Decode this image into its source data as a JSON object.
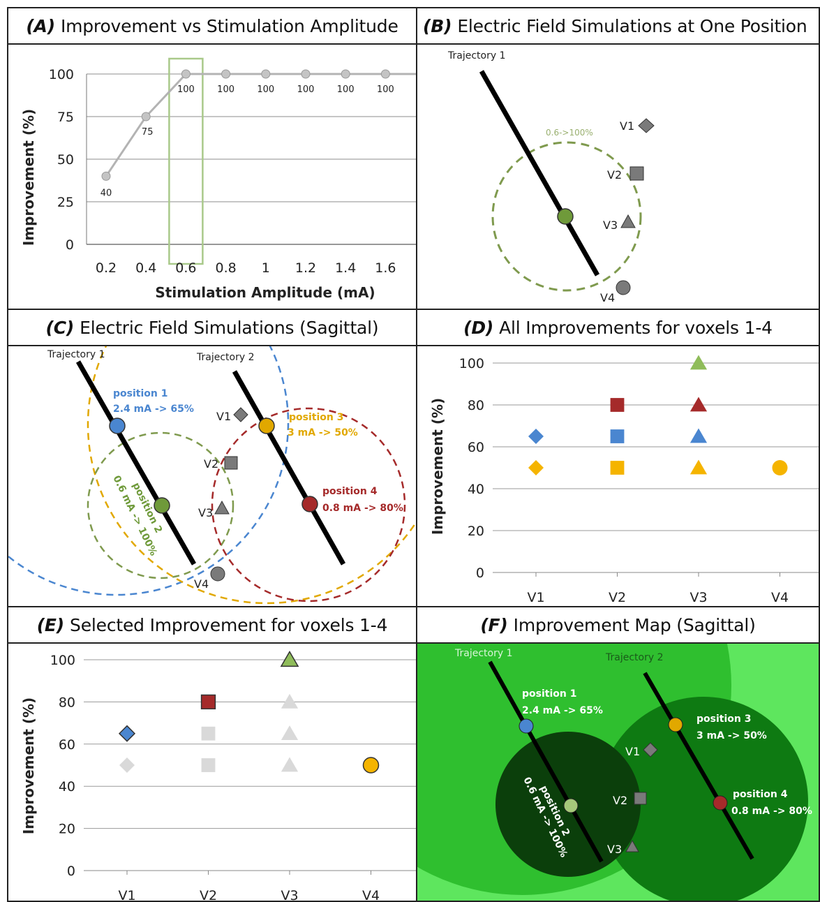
{
  "panels": {
    "a": {
      "tag": "(A)",
      "title": "Improvement vs Stimulation Amplitude"
    },
    "b": {
      "tag": "(B)",
      "title": "Electric Field Simulations at One Position"
    },
    "c": {
      "tag": "(C)",
      "title": "Electric Field Simulations (Sagittal)"
    },
    "d": {
      "tag": "(D)",
      "title": "All Improvements for voxels 1-4"
    },
    "e": {
      "tag": "(E)",
      "title": "Selected Improvement for voxels 1-4"
    },
    "f": {
      "tag": "(F)",
      "title": "Improvement Map (Sagittal)"
    }
  },
  "diagrams": {
    "b": {
      "trajectory": "Trajectory 1",
      "field_label": "0.6->100%",
      "voxels": [
        "V1",
        "V2",
        "V3",
        "V4"
      ]
    },
    "c": {
      "trajectories": [
        "Trajectory 1",
        "Trajectory 2"
      ],
      "positions": [
        {
          "name": "position 1",
          "detail": "2.4 mA -> 65%",
          "color": "#4a86d0"
        },
        {
          "name": "position 2",
          "detail": "0.6 mA -> 100%",
          "color": "#6f9a3a"
        },
        {
          "name": "position 3",
          "detail": "3 mA -> 50%",
          "color": "#e1a800"
        },
        {
          "name": "position 4",
          "detail": "0.8 mA -> 80%",
          "color": "#a52a2a"
        }
      ],
      "voxels": [
        "V1",
        "V2",
        "V3",
        "V4"
      ]
    },
    "f": {
      "trajectories": [
        "Trajectory 1",
        "Trajectory 2"
      ],
      "positions": [
        {
          "name": "position 1",
          "detail": "2.4 mA -> 65%"
        },
        {
          "name": "position 2",
          "detail": "0.6 mA -> 100%"
        },
        {
          "name": "position 3",
          "detail": "3 mA -> 50%"
        },
        {
          "name": "position 4",
          "detail": "0.8 mA -> 80%"
        }
      ],
      "voxels": [
        "V1",
        "V2",
        "V3",
        "V4"
      ],
      "colors": {
        "bright": "#5ee65e",
        "mid": "#2fbf2f",
        "dark": "#0e7a12",
        "darkest": "#0b3f0b"
      }
    }
  },
  "chart_data": [
    {
      "id": "A",
      "type": "line",
      "xlabel": "Stimulation Amplitude (mA)",
      "ylabel": "Improvement (%)",
      "categories": [
        "0.2",
        "0.4",
        "0.6",
        "0.8",
        "1",
        "1.2",
        "1.4",
        "1.6"
      ],
      "values": [
        40,
        75,
        100,
        100,
        100,
        100,
        100,
        100
      ],
      "data_labels": [
        "40",
        "75",
        "100",
        "100",
        "100",
        "100",
        "100",
        "100"
      ],
      "yticks": [
        "0",
        "25",
        "50",
        "75",
        "100"
      ],
      "ylim": [
        0,
        100
      ],
      "highlight_category": "0.6",
      "grid": true,
      "colors": {
        "line": "#b3b3b3",
        "highlight": "#a9c98a"
      }
    },
    {
      "id": "D",
      "type": "scatter",
      "ylabel": "Improvement (%)",
      "categories": [
        "V1",
        "V2",
        "V3",
        "V4"
      ],
      "yticks": [
        "0",
        "20",
        "40",
        "60",
        "80",
        "100"
      ],
      "ylim": [
        0,
        100
      ],
      "grid": true,
      "points": [
        {
          "x": "V1",
          "y": 65,
          "marker": "diamond",
          "color": "#4a86d0"
        },
        {
          "x": "V1",
          "y": 50,
          "marker": "diamond",
          "color": "#f5b400"
        },
        {
          "x": "V2",
          "y": 80,
          "marker": "square",
          "color": "#a52a2a"
        },
        {
          "x": "V2",
          "y": 65,
          "marker": "square",
          "color": "#4a86d0"
        },
        {
          "x": "V2",
          "y": 50,
          "marker": "square",
          "color": "#f5b400"
        },
        {
          "x": "V3",
          "y": 100,
          "marker": "triangle",
          "color": "#8fbc5a"
        },
        {
          "x": "V3",
          "y": 80,
          "marker": "triangle",
          "color": "#a52a2a"
        },
        {
          "x": "V3",
          "y": 65,
          "marker": "triangle",
          "color": "#4a86d0"
        },
        {
          "x": "V3",
          "y": 50,
          "marker": "triangle",
          "color": "#f5b400"
        },
        {
          "x": "V4",
          "y": 50,
          "marker": "circle",
          "color": "#f5b400"
        }
      ]
    },
    {
      "id": "E",
      "type": "scatter",
      "ylabel": "Improvement (%)",
      "categories": [
        "V1",
        "V2",
        "V3",
        "V4"
      ],
      "yticks": [
        "0",
        "20",
        "40",
        "60",
        "80",
        "100"
      ],
      "ylim": [
        0,
        100
      ],
      "grid": true,
      "points": [
        {
          "x": "V1",
          "y": 65,
          "marker": "diamond",
          "color": "#4a86d0",
          "selected": true
        },
        {
          "x": "V1",
          "y": 50,
          "marker": "diamond",
          "color": "#d9d9d9",
          "selected": false
        },
        {
          "x": "V2",
          "y": 80,
          "marker": "square",
          "color": "#a52a2a",
          "selected": true
        },
        {
          "x": "V2",
          "y": 65,
          "marker": "square",
          "color": "#d9d9d9",
          "selected": false
        },
        {
          "x": "V2",
          "y": 50,
          "marker": "square",
          "color": "#d9d9d9",
          "selected": false
        },
        {
          "x": "V3",
          "y": 100,
          "marker": "triangle",
          "color": "#8fbc5a",
          "selected": true
        },
        {
          "x": "V3",
          "y": 80,
          "marker": "triangle",
          "color": "#d9d9d9",
          "selected": false
        },
        {
          "x": "V3",
          "y": 65,
          "marker": "triangle",
          "color": "#d9d9d9",
          "selected": false
        },
        {
          "x": "V3",
          "y": 50,
          "marker": "triangle",
          "color": "#d9d9d9",
          "selected": false
        },
        {
          "x": "V4",
          "y": 50,
          "marker": "circle",
          "color": "#f5b400",
          "selected": true
        }
      ]
    }
  ]
}
